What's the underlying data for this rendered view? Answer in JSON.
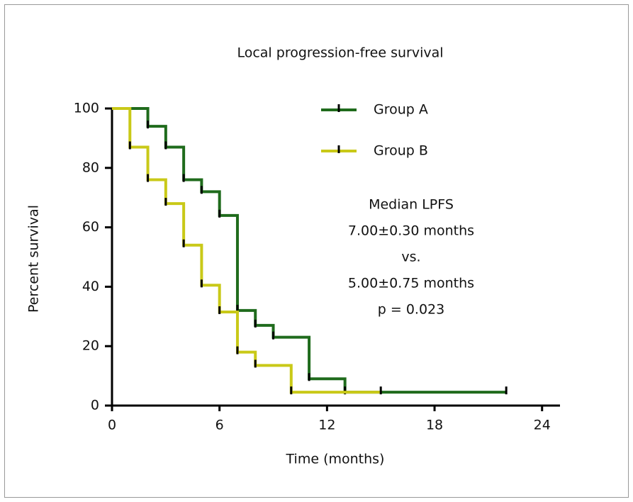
{
  "chart_data": {
    "type": "step",
    "title": "Local progression-free survival",
    "xlabel": "Time (months)",
    "ylabel": "Percent survival",
    "xlim": [
      0,
      25
    ],
    "xticks": [
      0,
      6,
      12,
      18,
      24
    ],
    "ylim": [
      0,
      100
    ],
    "yticks": [
      0,
      20,
      40,
      60,
      80,
      100
    ],
    "series": [
      {
        "name": "Group A",
        "color": "#1f6b1c",
        "x": [
          0,
          2,
          3,
          4,
          5,
          6,
          7,
          8,
          9,
          11,
          13,
          22
        ],
        "values": [
          100,
          94,
          87,
          76,
          72,
          64,
          32,
          27,
          23,
          9,
          4.5,
          4.5
        ]
      },
      {
        "name": "Group B",
        "color": "#c9c918",
        "x": [
          0,
          1,
          2,
          3,
          4,
          5,
          6,
          7,
          8,
          10,
          15
        ],
        "values": [
          100,
          87,
          76,
          68,
          54,
          40.5,
          31.5,
          18,
          13.5,
          4.5,
          4.5
        ]
      }
    ],
    "annotation": [
      "Median LPFS",
      "7.00±0.30 months",
      "vs.",
      "5.00±0.75 months",
      "p = 0.023"
    ]
  }
}
